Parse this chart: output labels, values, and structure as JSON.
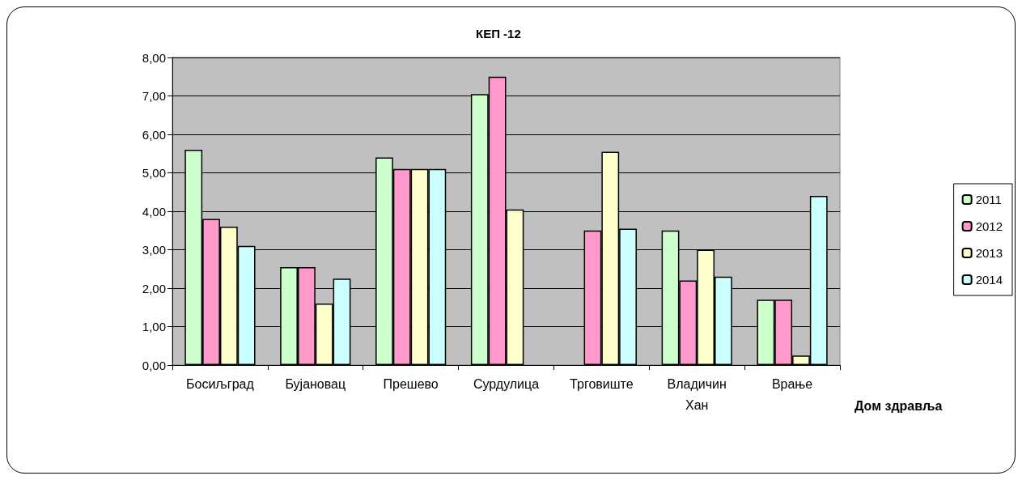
{
  "chart_data": {
    "type": "bar",
    "title": "КЕП -12",
    "xlabel": "Дом здравља",
    "categories": [
      "Босиљград",
      "Бујановац",
      "Прешево",
      "Сурдулица",
      "Трговиште",
      "Владичин Хан",
      "Врање"
    ],
    "series": [
      {
        "name": "2011",
        "color": "#ccffcc",
        "values": [
          5.6,
          2.55,
          5.4,
          7.05,
          null,
          3.5,
          1.7
        ]
      },
      {
        "name": "2012",
        "color": "#ff99cc",
        "values": [
          3.8,
          2.55,
          5.1,
          7.5,
          3.5,
          2.2,
          1.7
        ]
      },
      {
        "name": "2013",
        "color": "#ffffcc",
        "values": [
          3.6,
          1.6,
          5.1,
          4.05,
          5.55,
          3.0,
          0.25
        ]
      },
      {
        "name": "2014",
        "color": "#ccffff",
        "values": [
          3.1,
          2.25,
          5.1,
          null,
          3.55,
          2.3,
          4.4
        ]
      }
    ],
    "ylim": [
      0,
      8
    ],
    "yticks": [
      {
        "value": 0,
        "label": "0,00"
      },
      {
        "value": 1,
        "label": "1,00"
      },
      {
        "value": 2,
        "label": "2,00"
      },
      {
        "value": 3,
        "label": "3,00"
      },
      {
        "value": 4,
        "label": "4,00"
      },
      {
        "value": 5,
        "label": "5,00"
      },
      {
        "value": 6,
        "label": "6,00"
      },
      {
        "value": 7,
        "label": "7,00"
      },
      {
        "value": 8,
        "label": "8,00"
      }
    ],
    "grid": "y",
    "legend": "right"
  }
}
